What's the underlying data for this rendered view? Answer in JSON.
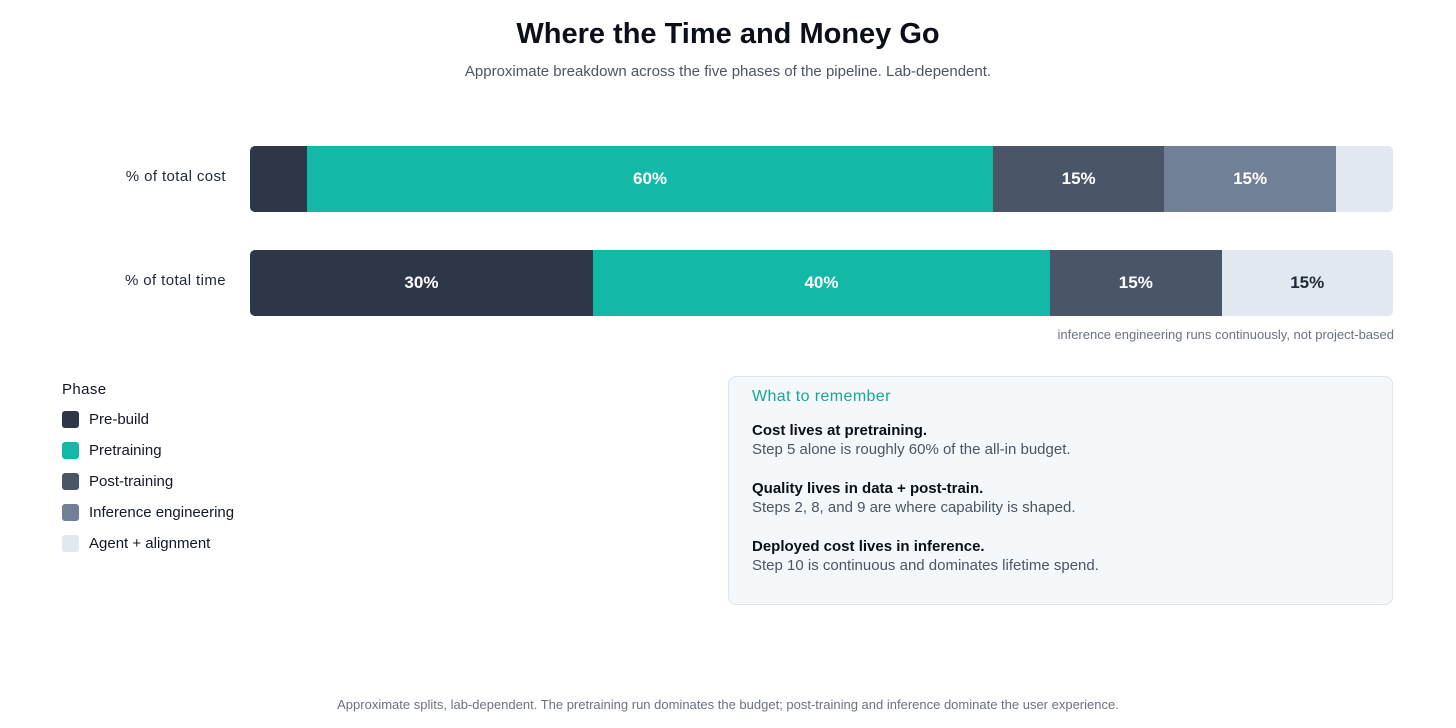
{
  "title": "Where the Time and Money Go",
  "subtitle": "Approximate breakdown across the five phases of the pipeline. Lab-dependent.",
  "colors": {
    "pre_build": "#2e3748",
    "pretraining": "#14b8a6",
    "post_training": "#4a5568",
    "inference_engineering": "#718096",
    "agent_alignment": "#e2e8f0"
  },
  "chart_data": {
    "type": "bar",
    "orientation": "horizontal",
    "stacked": true,
    "normalized_to_percent": true,
    "categories": [
      "% of total cost",
      "% of total time"
    ],
    "series": [
      {
        "name": "Pre-build",
        "values": [
          5,
          30
        ],
        "labels": [
          "",
          "30%"
        ],
        "color": "#2e3748"
      },
      {
        "name": "Pretraining",
        "values": [
          60,
          40
        ],
        "labels": [
          "60%",
          "40%"
        ],
        "color": "#14b8a6"
      },
      {
        "name": "Post-training",
        "values": [
          15,
          15
        ],
        "labels": [
          "15%",
          "15%"
        ],
        "color": "#4a5568"
      },
      {
        "name": "Inference engineering",
        "values": [
          15,
          0
        ],
        "labels": [
          "15%",
          ""
        ],
        "color": "#718096"
      },
      {
        "name": "Agent + alignment",
        "values": [
          5,
          15
        ],
        "labels": [
          "",
          "15%"
        ],
        "color": "#e2e8f0"
      }
    ],
    "xlim": [
      0,
      100
    ],
    "grid": false,
    "legend_title": "Phase",
    "legend_position": "bottom-left",
    "annotation": "inference engineering runs continuously, not project-based"
  },
  "remember": {
    "heading": "What to remember",
    "points": [
      {
        "head": "Cost lives at pretraining.",
        "body": "Step 5 alone is roughly 60% of the all-in budget."
      },
      {
        "head": "Quality lives in data + post-train.",
        "body": "Steps 2, 8, and 9 are where capability is shaped."
      },
      {
        "head": "Deployed cost lives in inference.",
        "body": "Step 10 is continuous and dominates lifetime spend."
      }
    ]
  },
  "footer": "Approximate splits, lab-dependent. The pretraining run dominates the budget; post-training and inference dominate the user experience."
}
